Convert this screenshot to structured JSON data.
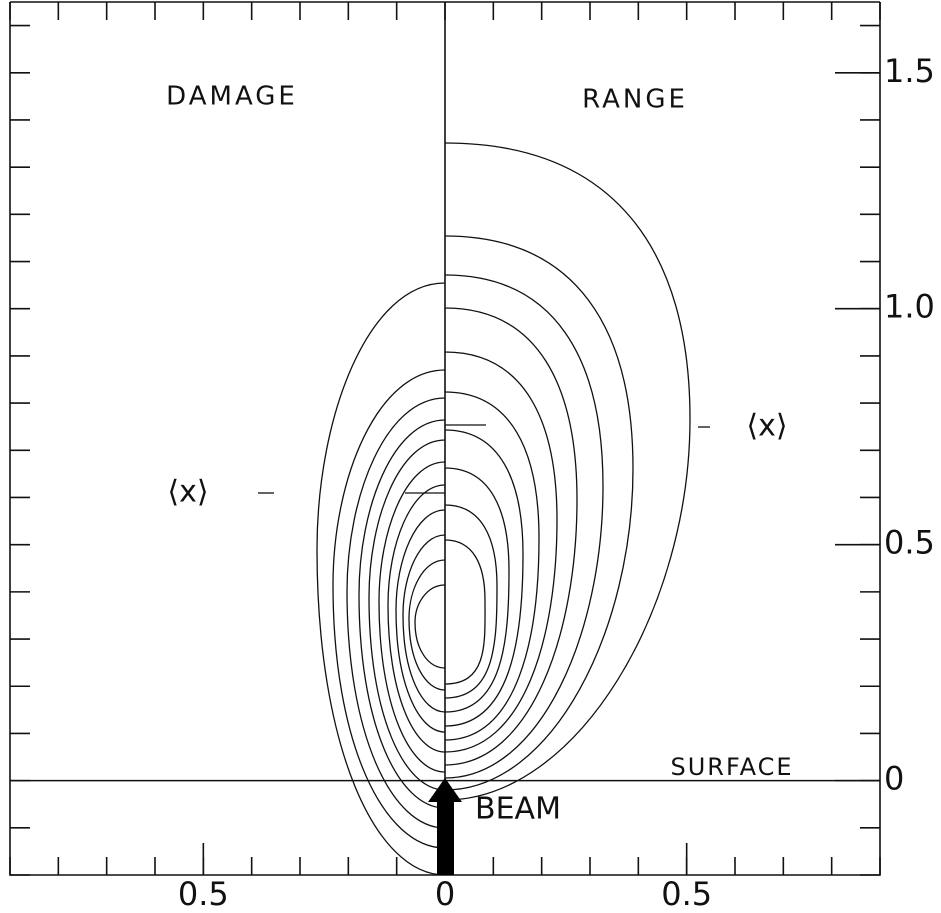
{
  "chart_data": {
    "type": "contour",
    "panels": [
      "DAMAGE",
      "RANGE"
    ],
    "surface_label": "SURFACE",
    "beam_label": "BEAM",
    "mean_label": "⟨x⟩",
    "xlim": [
      -0.9,
      0.9
    ],
    "xticks": [
      {
        "value": -0.5,
        "label": "0.5"
      },
      0,
      0.5
    ],
    "ylim": [
      -0.2,
      1.65
    ],
    "yticks": [
      0,
      0.5,
      {
        "value": 1.0,
        "label": "1.0"
      },
      1.5
    ],
    "minor_step": 0.1
  }
}
